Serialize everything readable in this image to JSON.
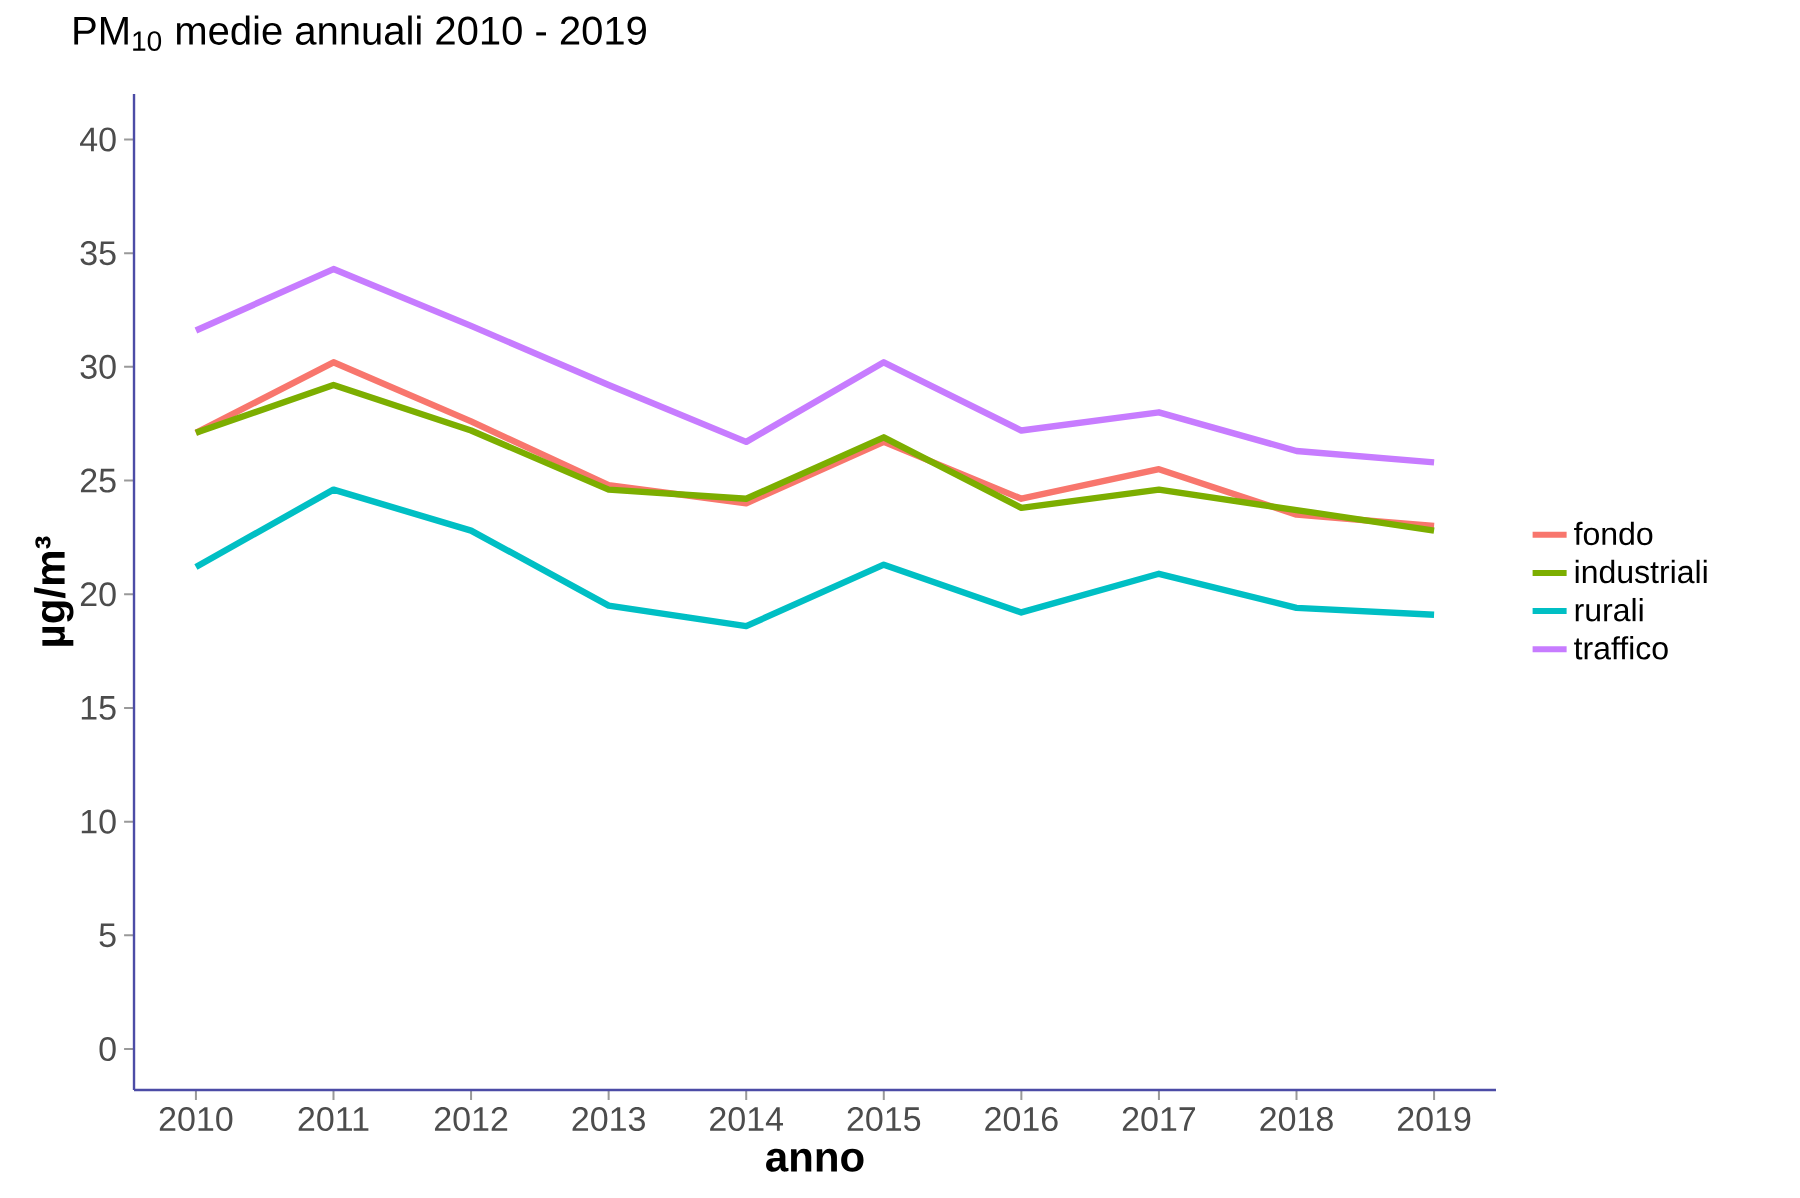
{
  "chart_data": {
    "type": "line",
    "title": "PM$_{10}$ medie annuali 2010 - 2019",
    "xlabel": "anno",
    "ylabel": "µg/m³",
    "x": [
      2010,
      2011,
      2012,
      2013,
      2014,
      2015,
      2016,
      2017,
      2018,
      2019
    ],
    "xlim": [
      2009.55,
      2019.45
    ],
    "xticks": [
      2010,
      2011,
      2012,
      2013,
      2014,
      2015,
      2016,
      2017,
      2018,
      2019
    ],
    "ylim": [
      -1.8,
      42
    ],
    "yticks": [
      0,
      5,
      10,
      15,
      20,
      25,
      30,
      35,
      40
    ],
    "legend": "right",
    "series": [
      {
        "name": "fondo",
        "color": "#f8766d",
        "values": [
          27.1,
          30.2,
          27.6,
          24.8,
          24.0,
          26.7,
          24.2,
          25.5,
          23.5,
          23.0
        ]
      },
      {
        "name": "industriali",
        "color": "#7cae00",
        "values": [
          27.1,
          29.2,
          27.2,
          24.6,
          24.2,
          26.9,
          23.8,
          24.6,
          23.7,
          22.8
        ]
      },
      {
        "name": "rurali",
        "color": "#00bfc4",
        "values": [
          21.2,
          24.6,
          22.8,
          19.5,
          18.6,
          21.3,
          19.2,
          20.9,
          19.4,
          19.1
        ]
      },
      {
        "name": "traffico",
        "color": "#c77cff",
        "values": [
          31.6,
          34.3,
          31.8,
          29.2,
          26.7,
          30.2,
          27.2,
          28.0,
          26.3,
          25.8
        ]
      }
    ]
  }
}
